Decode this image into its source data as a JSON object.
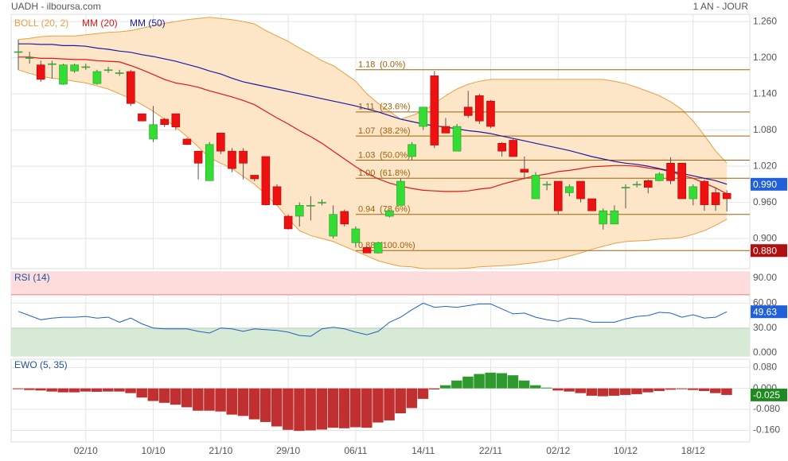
{
  "chart_data": [
    {
      "type": "candlestick",
      "title": "UADH - ilboursa.com",
      "subtitle": "1 AN - JOUR",
      "ylim": [
        0.85,
        1.272
      ],
      "yticks": [
        {
          "value": 1.26,
          "label": "1.260"
        },
        {
          "value": 1.2,
          "label": "1.200"
        },
        {
          "value": 1.14,
          "label": "1.140"
        },
        {
          "value": 1.08,
          "label": "1.080"
        },
        {
          "value": 1.02,
          "label": "1.020"
        },
        {
          "value": 0.96,
          "label": "0.960"
        },
        {
          "value": 0.9,
          "label": "0.900"
        }
      ],
      "grid": true,
      "rising_color": "#33dd33",
      "falling_color": "#ee1111",
      "open": [
        1.21,
        1.2,
        1.188,
        1.19,
        1.156,
        1.178,
        1.185,
        1.157,
        1.18,
        1.175,
        1.177,
        1.107,
        1.065,
        1.098,
        1.107,
        1.065,
        1.045,
        0.996,
        1.075,
        1.045,
        1.045,
        1.005,
        1.036,
        0.986,
        0.937,
        0.937,
        0.955,
        0.96,
        0.904,
        0.945,
        0.893,
        0.885,
        0.876,
        0.937,
        0.955,
        1.036,
        1.086,
        1.17,
        1.086,
        1.045,
        1.118,
        1.137,
        1.128,
        1.058,
        1.063,
        1.015,
        0.966,
        0.99,
        0.995,
        0.976,
        0.995,
        0.966,
        0.924,
        0.924,
        0.985,
        0.99,
        0.996,
        0.996,
        1.025,
        1.025,
        0.966,
        0.995,
        0.976,
        0.975
      ],
      "high": [
        1.23,
        1.21,
        1.195,
        1.195,
        1.19,
        1.19,
        1.19,
        1.18,
        1.185,
        1.18,
        1.18,
        1.107,
        1.12,
        1.1,
        1.107,
        1.067,
        1.045,
        1.06,
        1.075,
        1.05,
        1.05,
        1.005,
        1.036,
        0.99,
        0.94,
        0.96,
        0.97,
        0.965,
        0.955,
        0.948,
        0.92,
        0.887,
        0.895,
        0.948,
        1.0,
        1.06,
        1.118,
        1.178,
        1.1,
        1.09,
        1.145,
        1.14,
        1.13,
        1.06,
        1.065,
        1.036,
        1.01,
        0.995,
        0.995,
        0.99,
        0.995,
        0.966,
        0.95,
        0.955,
        0.99,
        0.995,
        0.998,
        1.01,
        1.035,
        1.025,
        0.99,
        0.998,
        0.985,
        0.98
      ],
      "low": [
        1.18,
        1.19,
        1.16,
        1.165,
        1.155,
        1.175,
        1.18,
        1.155,
        1.175,
        1.17,
        1.12,
        1.095,
        1.06,
        1.085,
        1.08,
        1.055,
        0.998,
        0.996,
        1.04,
        1.01,
        0.998,
        0.995,
        0.955,
        0.955,
        0.915,
        0.92,
        0.93,
        0.955,
        0.9,
        0.92,
        0.885,
        0.876,
        0.875,
        0.935,
        0.955,
        1.03,
        1.08,
        1.05,
        1.075,
        1.045,
        1.1,
        1.09,
        1.083,
        1.036,
        1.036,
        0.998,
        0.966,
        0.98,
        0.94,
        0.97,
        0.96,
        0.946,
        0.915,
        0.924,
        0.95,
        0.985,
        0.975,
        0.995,
        0.99,
        0.966,
        0.955,
        0.946,
        0.946,
        0.945
      ],
      "close": [
        1.21,
        1.2,
        1.164,
        1.19,
        1.188,
        1.188,
        1.185,
        1.177,
        1.18,
        1.175,
        1.124,
        1.095,
        1.089,
        1.089,
        1.085,
        1.056,
        1.025,
        1.056,
        1.045,
        1.016,
        1.025,
        0.999,
        0.956,
        0.956,
        0.916,
        0.955,
        0.955,
        0.96,
        0.94,
        0.924,
        0.916,
        0.876,
        0.893,
        0.946,
        0.995,
        1.056,
        1.118,
        1.055,
        1.075,
        1.086,
        1.104,
        1.095,
        1.086,
        1.045,
        1.036,
        1.01,
        1.005,
        0.99,
        0.946,
        0.986,
        0.966,
        0.946,
        0.946,
        0.946,
        0.985,
        0.99,
        0.985,
        1.007,
        0.996,
        0.966,
        0.986,
        0.956,
        0.956,
        0.966
      ],
      "bollinger": {
        "name": "BOLL (20, 2)",
        "color": "#e8a040",
        "fill": "#fde6c8",
        "upper": [
          1.23,
          1.232,
          1.235,
          1.236,
          1.236,
          1.236,
          1.238,
          1.24,
          1.242,
          1.243,
          1.245,
          1.249,
          1.253,
          1.257,
          1.26,
          1.263,
          1.265,
          1.267,
          1.265,
          1.263,
          1.26,
          1.256,
          1.245,
          1.236,
          1.227,
          1.216,
          1.206,
          1.195,
          1.187,
          1.174,
          1.161,
          1.14,
          1.124,
          1.111,
          1.098,
          1.104,
          1.111,
          1.124,
          1.137,
          1.148,
          1.156,
          1.161,
          1.164,
          1.164,
          1.164,
          1.164,
          1.164,
          1.164,
          1.164,
          1.164,
          1.164,
          1.164,
          1.164,
          1.161,
          1.157,
          1.151,
          1.144,
          1.137,
          1.127,
          1.114,
          1.095,
          1.071,
          1.045,
          1.025
        ],
        "lower": [
          1.18,
          1.174,
          1.169,
          1.166,
          1.164,
          1.161,
          1.158,
          1.153,
          1.148,
          1.14,
          1.132,
          1.122,
          1.111,
          1.098,
          1.085,
          1.069,
          1.052,
          1.034,
          1.025,
          1.016,
          1.003,
          0.99,
          0.973,
          0.955,
          0.933,
          0.913,
          0.905,
          0.9,
          0.895,
          0.887,
          0.879,
          0.871,
          0.863,
          0.858,
          0.854,
          0.853,
          0.85,
          0.85,
          0.85,
          0.85,
          0.851,
          0.853,
          0.854,
          0.855,
          0.856,
          0.858,
          0.86,
          0.863,
          0.866,
          0.871,
          0.876,
          0.882,
          0.887,
          0.892,
          0.895,
          0.896,
          0.897,
          0.899,
          0.9,
          0.902,
          0.907,
          0.913,
          0.922,
          0.932
        ]
      },
      "series": [
        {
          "name": "MM (20)",
          "color": "#e01818",
          "values": [
            1.201,
            1.201,
            1.199,
            1.199,
            1.198,
            1.197,
            1.197,
            1.195,
            1.194,
            1.193,
            1.187,
            1.18,
            1.172,
            1.164,
            1.158,
            1.155,
            1.151,
            1.145,
            1.14,
            1.135,
            1.129,
            1.122,
            1.111,
            1.1,
            1.09,
            1.079,
            1.069,
            1.058,
            1.045,
            1.032,
            1.019,
            1.008,
            0.999,
            0.992,
            0.987,
            0.983,
            0.98,
            0.979,
            0.978,
            0.978,
            0.979,
            0.982,
            0.984,
            0.99,
            0.995,
            1.0,
            1.004,
            1.007,
            1.011,
            1.013,
            1.016,
            1.019,
            1.02,
            1.021,
            1.021,
            1.02,
            1.017,
            1.015,
            1.011,
            1.005,
            1.0,
            0.992,
            0.984,
            0.974
          ]
        },
        {
          "name": "MM (50)",
          "color": "#1a1aa8",
          "values": [
            1.223,
            1.223,
            1.222,
            1.222,
            1.22,
            1.22,
            1.219,
            1.216,
            1.214,
            1.211,
            1.209,
            1.205,
            1.202,
            1.198,
            1.194,
            1.189,
            1.184,
            1.178,
            1.173,
            1.166,
            1.16,
            1.156,
            1.152,
            1.148,
            1.144,
            1.14,
            1.136,
            1.132,
            1.128,
            1.124,
            1.12,
            1.115,
            1.11,
            1.104,
            1.098,
            1.094,
            1.09,
            1.087,
            1.085,
            1.082,
            1.079,
            1.077,
            1.074,
            1.07,
            1.066,
            1.062,
            1.058,
            1.054,
            1.05,
            1.046,
            1.041,
            1.036,
            1.032,
            1.028,
            1.025,
            1.023,
            1.02,
            1.016,
            1.012,
            1.008,
            1.004,
            1.0,
            0.996,
            0.99
          ]
        }
      ],
      "fib_color": "#a0600a",
      "fib_levels": [
        {
          "value": 1.18,
          "label": "1.18",
          "percent": "(0.0%)"
        },
        {
          "value": 1.11,
          "label": "1.11",
          "percent": "(23.6%)"
        },
        {
          "value": 1.07,
          "label": "1.07",
          "percent": "(38.2%)"
        },
        {
          "value": 1.03,
          "label": "1.03",
          "percent": "(50.0%)"
        },
        {
          "value": 1.0,
          "label": "1.00",
          "percent": "(61.8%)"
        },
        {
          "value": 0.94,
          "label": "0.94",
          "percent": "(78.6%)"
        },
        {
          "value": 0.88,
          "label": "0.88",
          "percent": "(100.0%)"
        }
      ],
      "markers": [
        {
          "value": 0.99,
          "label": "0.990",
          "color": "#2060d8"
        },
        {
          "value": 0.88,
          "label": "0.880",
          "color": "#b01010"
        }
      ]
    },
    {
      "type": "line",
      "title": "RSI (14)",
      "color": "#2060c0",
      "ylim": [
        -3.8,
        97.7
      ],
      "yticks": [
        {
          "value": 90,
          "label": "90.00"
        },
        {
          "value": 60,
          "label": "60.00"
        },
        {
          "value": 30,
          "label": "30.00"
        },
        {
          "value": 0,
          "label": "0.000"
        }
      ],
      "overbought": 70,
      "oversold": 30,
      "overbought_color": "#ffdcdc",
      "oversold_color": "#d6ead6",
      "values": [
        50,
        45,
        40,
        42,
        43,
        43,
        44,
        42,
        43,
        37,
        42,
        35,
        30,
        29,
        29,
        29,
        26,
        24,
        30,
        29,
        26,
        29,
        28,
        27,
        25,
        21,
        20,
        29,
        31,
        29,
        25,
        22,
        26,
        37,
        43,
        52,
        60,
        55,
        56,
        55,
        57,
        59,
        59,
        53,
        47,
        48,
        43,
        40,
        38,
        42,
        41,
        37,
        37,
        37,
        41,
        44,
        45,
        49,
        48,
        43,
        46,
        42,
        43,
        49.63
      ],
      "marker_color": "#2060d8"
    },
    {
      "type": "bar",
      "title": "EWO (5, 35)",
      "ylim": [
        -0.204,
        0.111
      ],
      "yticks": [
        {
          "value": 0.08,
          "label": "0.080"
        },
        {
          "value": 0,
          "label": "0.000"
        },
        {
          "value": -0.08,
          "label": "-0.080"
        },
        {
          "value": -0.16,
          "label": "-0.160"
        }
      ],
      "positive_color": "#2e9a2e",
      "negative_color": "#c03030",
      "categories": [
        null,
        null,
        null,
        null,
        null,
        null,
        "02/10",
        null,
        null,
        null,
        null,
        null,
        "10/10",
        null,
        null,
        null,
        null,
        null,
        "21/10",
        null,
        null,
        null,
        null,
        null,
        "29/10",
        null,
        null,
        null,
        null,
        null,
        "06/11",
        null,
        null,
        null,
        null,
        null,
        "14/11",
        null,
        null,
        null,
        null,
        null,
        "22/11",
        null,
        null,
        null,
        null,
        null,
        "02/12",
        null,
        null,
        null,
        null,
        null,
        "10/12",
        null,
        null,
        null,
        null,
        null,
        "18/12",
        null,
        null,
        null
      ],
      "values": [
        -0.003,
        -0.006,
        -0.008,
        -0.012,
        -0.015,
        -0.015,
        -0.012,
        -0.013,
        -0.012,
        -0.012,
        -0.018,
        -0.035,
        -0.048,
        -0.055,
        -0.062,
        -0.072,
        -0.085,
        -0.085,
        -0.088,
        -0.1,
        -0.105,
        -0.118,
        -0.128,
        -0.145,
        -0.158,
        -0.162,
        -0.16,
        -0.157,
        -0.15,
        -0.152,
        -0.148,
        -0.15,
        -0.13,
        -0.122,
        -0.095,
        -0.075,
        -0.04,
        -0.004,
        0.012,
        0.03,
        0.045,
        0.055,
        0.06,
        0.058,
        0.05,
        0.03,
        0.012,
        0.003,
        -0.008,
        -0.012,
        -0.018,
        -0.028,
        -0.03,
        -0.028,
        -0.025,
        -0.022,
        -0.015,
        -0.01,
        -0.005,
        -0.003,
        -0.006,
        -0.01,
        -0.018,
        -0.025
      ],
      "marker_color": "#1f8a1f"
    }
  ]
}
